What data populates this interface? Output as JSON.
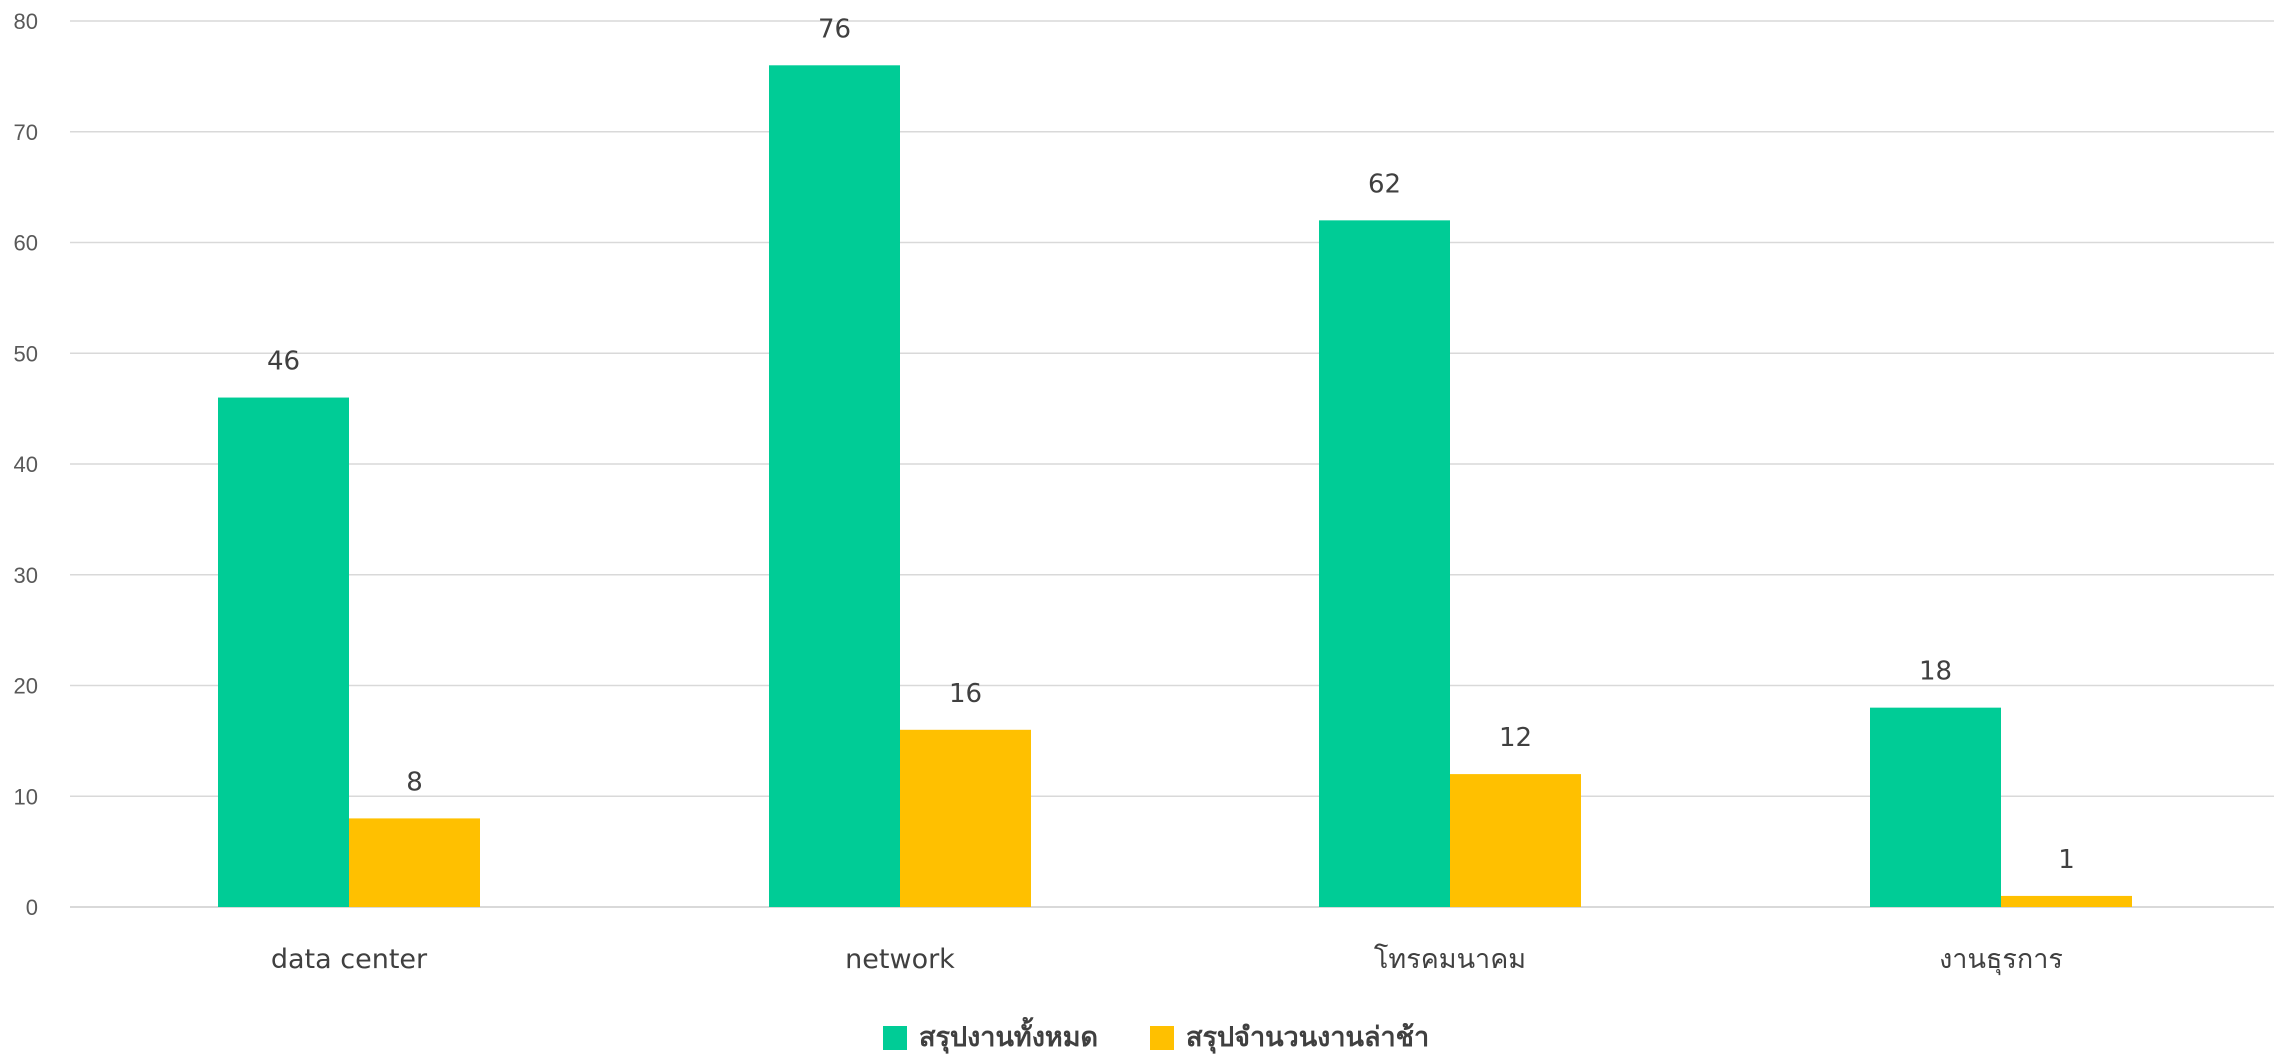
{
  "chart_data": {
    "type": "bar",
    "title": "",
    "xlabel": "",
    "ylabel": "",
    "categories": [
      "data center",
      "network",
      "โทรคมนาคม",
      "งานธุรการ"
    ],
    "series": [
      {
        "name": "สรุปงานทั้งหมด",
        "values": [
          46,
          76,
          62,
          18
        ],
        "color": "#00CC96"
      },
      {
        "name": "สรุปจำนวนงานล่าช้า",
        "values": [
          8,
          16,
          12,
          1
        ],
        "color": "#FFC000"
      }
    ],
    "ylim": [
      0,
      80
    ],
    "yticks": [
      0,
      10,
      20,
      30,
      40,
      50,
      60,
      70,
      80
    ],
    "grid": true,
    "gridline_color": "#D9D9D9",
    "data_labels": true,
    "legend_position": "bottom"
  }
}
